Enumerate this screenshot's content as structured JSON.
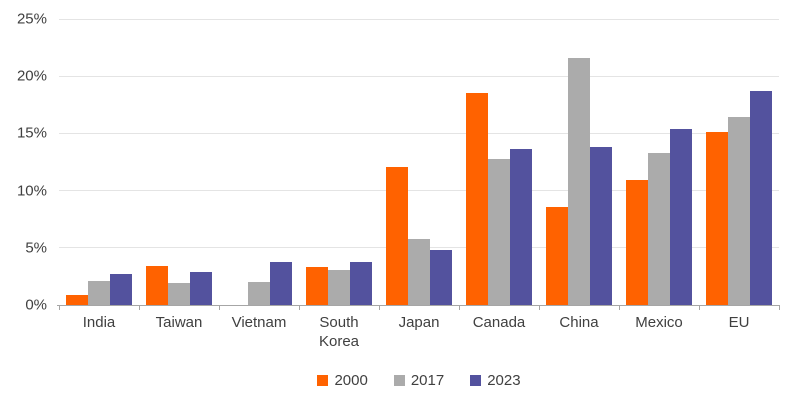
{
  "chart_data": {
    "type": "bar",
    "title": "",
    "xlabel": "",
    "ylabel": "",
    "ylim": [
      0,
      25
    ],
    "ytick_step": 5,
    "yticks": [
      "0%",
      "5%",
      "10%",
      "15%",
      "20%",
      "25%"
    ],
    "grid": true,
    "legend_position": "bottom",
    "categories": [
      "India",
      "Taiwan",
      "Vietnam",
      "South Korea",
      "Japan",
      "Canada",
      "China",
      "Mexico",
      "EU"
    ],
    "series": [
      {
        "name": "2000",
        "color": "#FF6200",
        "values": [
          0.9,
          3.4,
          0,
          3.3,
          12.1,
          18.5,
          8.6,
          10.9,
          15.1
        ]
      },
      {
        "name": "2017",
        "color": "#ABABAB",
        "values": [
          2.1,
          1.9,
          2.0,
          3.1,
          5.8,
          12.8,
          21.6,
          13.3,
          16.4
        ]
      },
      {
        "name": "2023",
        "color": "#53529E",
        "values": [
          2.7,
          2.9,
          3.8,
          3.8,
          4.8,
          13.6,
          13.8,
          15.4,
          18.7
        ]
      }
    ],
    "colors": {
      "gridline": "#E4E4E4",
      "axis": "#A6A6A6",
      "text": "#404040",
      "background": "#FFFFFF"
    }
  }
}
